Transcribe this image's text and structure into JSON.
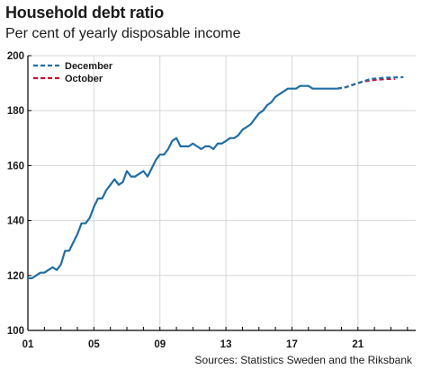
{
  "header": {
    "title": "Household debt ratio",
    "subtitle": "Per cent of yearly disposable income"
  },
  "footer": {
    "source": "Sources: Statistics Sweden and the Riksbank"
  },
  "colors": {
    "blue": "#1f6ea3",
    "red": "#c8102e",
    "grid": "#d6d6d6",
    "axis": "#000000"
  },
  "chart_data": {
    "type": "line",
    "title": "Household debt ratio",
    "subtitle": "Per cent of yearly disposable income",
    "xlabel": "",
    "ylabel": "",
    "xlim": [
      2001,
      2024.5
    ],
    "ylim": [
      100,
      200
    ],
    "x_ticks": [
      2001,
      2005,
      2009,
      2013,
      2017,
      2021
    ],
    "x_tick_labels": [
      "01",
      "05",
      "09",
      "13",
      "17",
      "21"
    ],
    "y_ticks": [
      100,
      120,
      140,
      160,
      180,
      200
    ],
    "y_tick_labels": [
      "100",
      "120",
      "140",
      "160",
      "180",
      "200"
    ],
    "grid": true,
    "legend_position": "top-left",
    "historical": {
      "x": [
        2001.0,
        2001.25,
        2001.5,
        2001.75,
        2002.0,
        2002.25,
        2002.5,
        2002.75,
        2003.0,
        2003.25,
        2003.5,
        2003.75,
        2004.0,
        2004.25,
        2004.5,
        2004.75,
        2005.0,
        2005.25,
        2005.5,
        2005.75,
        2006.0,
        2006.25,
        2006.5,
        2006.75,
        2007.0,
        2007.25,
        2007.5,
        2007.75,
        2008.0,
        2008.25,
        2008.5,
        2008.75,
        2009.0,
        2009.25,
        2009.5,
        2009.75,
        2010.0,
        2010.25,
        2010.5,
        2010.75,
        2011.0,
        2011.25,
        2011.5,
        2011.75,
        2012.0,
        2012.25,
        2012.5,
        2012.75,
        2013.0,
        2013.25,
        2013.5,
        2013.75,
        2014.0,
        2014.25,
        2014.5,
        2014.75,
        2015.0,
        2015.25,
        2015.5,
        2015.75,
        2016.0,
        2016.25,
        2016.5,
        2016.75,
        2017.0,
        2017.25,
        2017.5,
        2017.75,
        2018.0,
        2018.25,
        2018.5,
        2018.75,
        2019.0,
        2019.25,
        2019.5,
        2019.75
      ],
      "y": [
        119.0,
        119.0,
        120.0,
        121.0,
        121.0,
        122.0,
        123.0,
        122.0,
        124.0,
        129.0,
        129.0,
        132.0,
        135.0,
        139.0,
        139.0,
        141.0,
        145.0,
        148.0,
        148.0,
        151.0,
        153.0,
        155.0,
        153.0,
        154.0,
        158.0,
        156.0,
        156.0,
        157.0,
        158.0,
        156.0,
        159.0,
        162.0,
        164.0,
        164.0,
        166.0,
        169.0,
        170.0,
        167.0,
        167.0,
        167.0,
        168.0,
        167.0,
        166.0,
        167.0,
        167.0,
        166.0,
        168.0,
        168.0,
        169.0,
        170.0,
        170.0,
        171.0,
        173.0,
        174.0,
        175.0,
        177.0,
        179.0,
        180.0,
        182.0,
        183.0,
        185.0,
        186.0,
        187.0,
        188.0,
        188.0,
        188.0,
        189.0,
        189.0,
        189.0,
        188.0,
        188.0,
        188.0,
        188.0,
        188.0,
        188.0,
        188.0
      ]
    },
    "series": [
      {
        "name": "December",
        "style": "dashed",
        "color": "#1f6ea3",
        "x": [
          2019.75,
          2020.25,
          2020.75,
          2021.25,
          2021.75,
          2022.25,
          2022.75,
          2023.25,
          2023.75
        ],
        "y": [
          188.0,
          188.5,
          189.5,
          190.5,
          191.5,
          191.8,
          192.0,
          192.1,
          192.2
        ]
      },
      {
        "name": "October",
        "style": "dashed",
        "color": "#c8102e",
        "x": [
          2019.75,
          2020.25,
          2020.75,
          2021.25,
          2021.75,
          2022.25,
          2022.75,
          2023.25
        ],
        "y": [
          188.0,
          188.5,
          189.5,
          190.5,
          191.0,
          191.3,
          191.5,
          191.6
        ]
      }
    ]
  }
}
